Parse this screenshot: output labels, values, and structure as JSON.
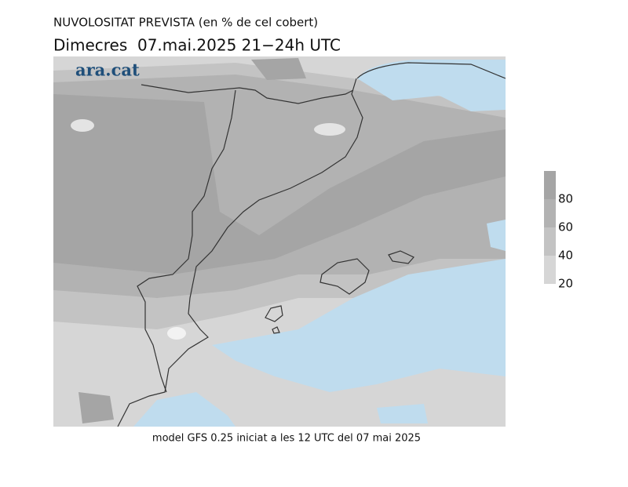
{
  "header": {
    "title": "NUVOLOSITAT PREVISTA (en % de cel cobert)",
    "subtitle": "Dimecres  07.mai.2025 21−24h UTC"
  },
  "logo": "ara.cat",
  "footer": "model GFS 0.25 iniciat a les 12 UTC del 07 mai 2025",
  "legend": {
    "ticks": [
      20,
      40,
      60,
      80
    ]
  }
}
